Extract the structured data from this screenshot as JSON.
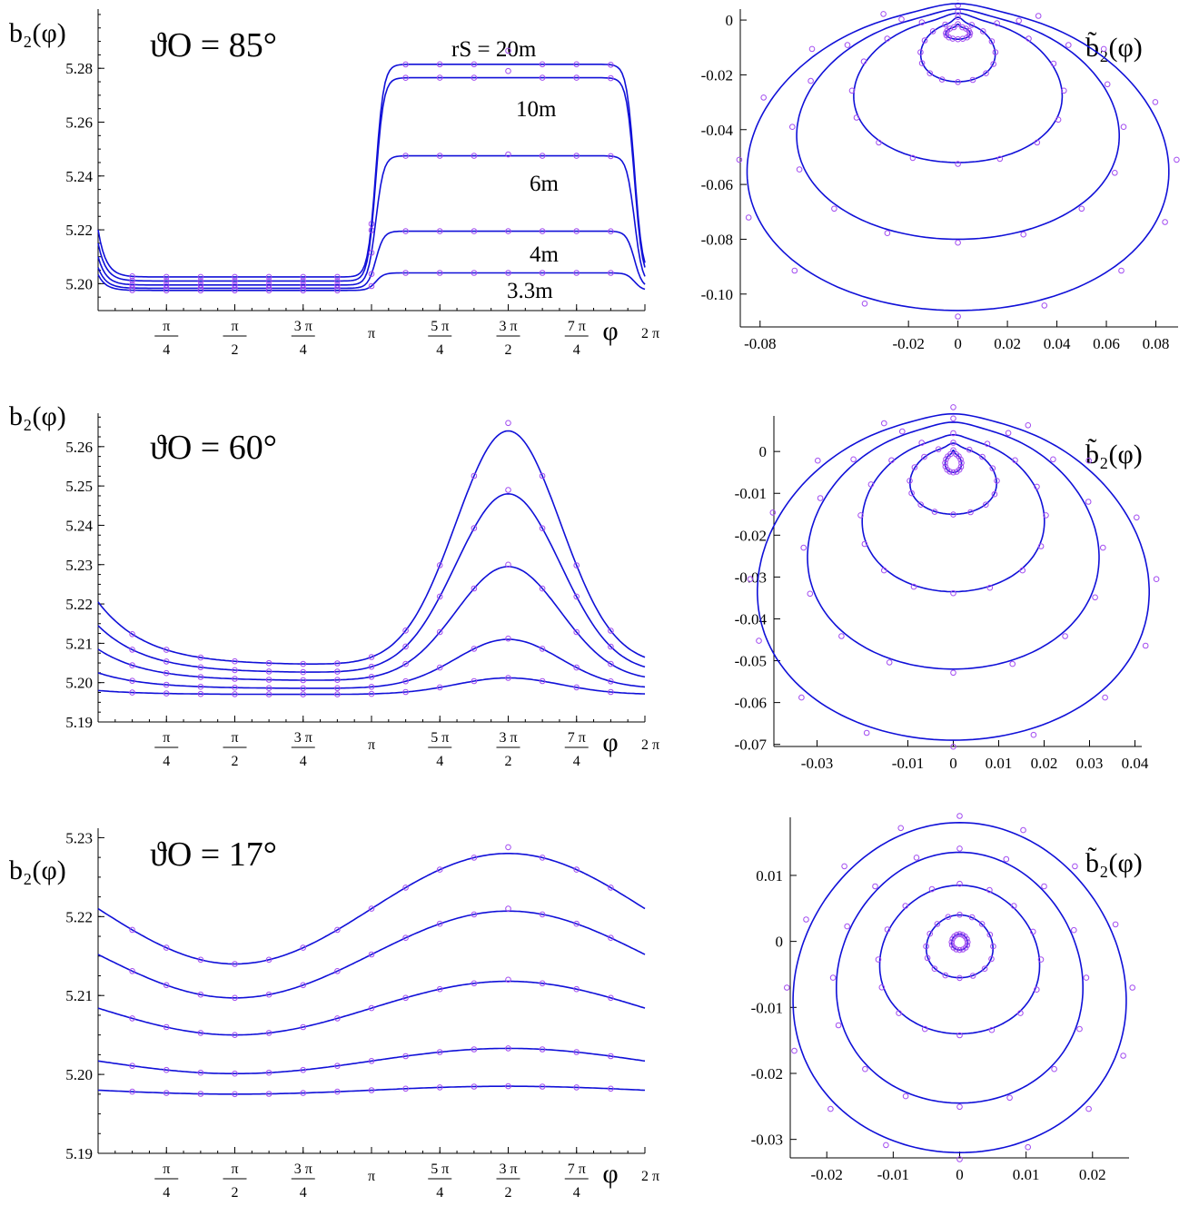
{
  "figure": {
    "ylabel_left": "b₂(φ)",
    "ylabel_right": "b̃₂(φ)",
    "xlabel": "φ",
    "rs_labels": [
      "rS = 20m",
      "10m",
      "6m",
      "4m",
      "3.3m"
    ],
    "colors": {
      "curve": "#1010d8",
      "marker": "#a24cf0",
      "axis": "#000000"
    }
  },
  "chart_data": [
    {
      "id": "p85",
      "type": "line",
      "title": "ϑO = 85°",
      "xlabel": "φ",
      "ylabel": "b₂(φ)",
      "x_ticks": [
        "π/4",
        "π/2",
        "3π/4",
        "π",
        "5π/4",
        "3π/2",
        "7π/4",
        "2π"
      ],
      "y_ticks": [
        "5.20",
        "5.22",
        "5.24",
        "5.26",
        "5.28"
      ],
      "xlim": [
        0,
        6.2832
      ],
      "ylim": [
        5.19,
        5.302
      ],
      "series": [
        {
          "name": "20m",
          "base": 5.2025,
          "peak": 5.2815,
          "shape": "step",
          "marker_peak": 5.2865
        },
        {
          "name": "10m",
          "base": 5.201,
          "peak": 5.2765,
          "shape": "step",
          "marker_peak": 5.279
        },
        {
          "name": "6m",
          "base": 5.1995,
          "peak": 5.2475,
          "shape": "step",
          "marker_peak": 5.248
        },
        {
          "name": "4m",
          "base": 5.1983,
          "peak": 5.2195,
          "shape": "step",
          "marker_peak": 5.2195
        },
        {
          "name": "3.3m",
          "base": 5.1975,
          "peak": 5.204,
          "shape": "step",
          "marker_peak": 5.204
        }
      ]
    },
    {
      "id": "p85r",
      "type": "scatter",
      "ylabel": "b̃₂(φ)",
      "x_ticks": [
        "-0.08",
        "-0.02",
        "0",
        "0.02",
        "0.04",
        "0.06",
        "0.08"
      ],
      "y_ticks": [
        "0",
        "-0.02",
        "-0.04",
        "-0.06",
        "-0.08",
        "-0.10"
      ],
      "xlim": [
        -0.088,
        0.089
      ],
      "ylim": [
        -0.112,
        0.004
      ],
      "loops": [
        {
          "rx": 0.0049,
          "top": -0.0025,
          "bottom": -0.007,
          "bump": 0.001
        },
        {
          "rx": 0.015,
          "top": -0.001,
          "bottom": -0.0225,
          "bump": 0.002
        },
        {
          "rx": 0.042,
          "top": 0.0005,
          "bottom": -0.052,
          "bump": 0.002
        },
        {
          "rx": 0.065,
          "top": 0.002,
          "bottom": -0.08,
          "bump": 0.002
        },
        {
          "rx": 0.085,
          "top": 0.004,
          "bottom": -0.106,
          "bump": 0.002
        }
      ]
    },
    {
      "id": "p60",
      "type": "line",
      "title": "ϑO = 60°",
      "xlabel": "φ",
      "ylabel": "b₂(φ)",
      "x_ticks": [
        "π/4",
        "π/2",
        "3π/4",
        "π",
        "5π/4",
        "3π/2",
        "7π/4",
        "2π"
      ],
      "y_ticks": [
        "5.19",
        "5.20",
        "5.21",
        "5.22",
        "5.23",
        "5.24",
        "5.25",
        "5.26"
      ],
      "xlim": [
        0,
        6.2832
      ],
      "ylim": [
        5.19,
        5.2685
      ],
      "series": [
        {
          "name": "20m",
          "base": 5.2045,
          "peak": 5.264,
          "shape": "smooth",
          "marker_peak": 5.266
        },
        {
          "name": "10m",
          "base": 5.2025,
          "peak": 5.248,
          "shape": "smooth",
          "marker_peak": 5.249
        },
        {
          "name": "6m",
          "base": 5.2005,
          "peak": 5.2295,
          "shape": "smooth",
          "marker_peak": 5.23
        },
        {
          "name": "4m",
          "base": 5.1985,
          "peak": 5.211,
          "shape": "smooth",
          "marker_peak": 5.2112
        },
        {
          "name": "3.3m",
          "base": 5.197,
          "peak": 5.2012,
          "shape": "smooth",
          "marker_peak": 5.2012
        }
      ]
    },
    {
      "id": "p60r",
      "type": "scatter",
      "ylabel": "b̃₂(φ)",
      "x_ticks": [
        "-0.03",
        "-0.01",
        "0",
        "0.01",
        "0.02",
        "0.03",
        "0.04"
      ],
      "y_ticks": [
        "0",
        "-0.01",
        "-0.02",
        "-0.03",
        "-0.04",
        "-0.05",
        "-0.06",
        "-0.07"
      ],
      "xlim": [
        -0.0395,
        0.0415
      ],
      "ylim": [
        -0.0705,
        0.0085
      ],
      "loops": [
        {
          "rx": 0.0018,
          "top": -0.0005,
          "bottom": -0.005,
          "bump": 0.0008
        },
        {
          "rx": 0.0095,
          "top": 0.001,
          "bottom": -0.015,
          "bump": 0.001
        },
        {
          "rx": 0.02,
          "top": 0.003,
          "bottom": -0.0335,
          "bump": 0.001
        },
        {
          "rx": 0.032,
          "top": 0.006,
          "bottom": -0.052,
          "bump": 0.001
        },
        {
          "rx": 0.043,
          "top": 0.008,
          "bottom": -0.069,
          "bump": 0.001
        }
      ]
    },
    {
      "id": "p17",
      "type": "line",
      "title": "ϑO = 17°",
      "xlabel": "φ",
      "ylabel": "b₂(φ)",
      "x_ticks": [
        "π/4",
        "π/2",
        "3π/4",
        "π",
        "5π/4",
        "3π/2",
        "7π/4",
        "2π"
      ],
      "y_ticks": [
        "5.19",
        "5.20",
        "5.21",
        "5.22",
        "5.23"
      ],
      "xlim": [
        0,
        6.2832
      ],
      "ylim": [
        5.19,
        5.2312
      ],
      "series": [
        {
          "name": "20m",
          "base": 5.214,
          "peak": 5.228,
          "shape": "sine",
          "marker_peak": 5.2288
        },
        {
          "name": "10m",
          "base": 5.2097,
          "peak": 5.2207,
          "shape": "sine",
          "marker_peak": 5.221
        },
        {
          "name": "6m",
          "base": 5.205,
          "peak": 5.2118,
          "shape": "sine",
          "marker_peak": 5.212
        },
        {
          "name": "4m",
          "base": 5.2001,
          "peak": 5.2033,
          "shape": "sine",
          "marker_peak": 5.2033
        },
        {
          "name": "3.3m",
          "base": 5.1975,
          "peak": 5.1985,
          "shape": "sine",
          "marker_peak": 5.1985
        }
      ]
    },
    {
      "id": "p17r",
      "type": "scatter",
      "ylabel": "b̃₂(φ)",
      "x_ticks": [
        "-0.02",
        "-0.01",
        "0",
        "0.01",
        "0.02"
      ],
      "y_ticks": [
        "0.01",
        "0",
        "-0.01",
        "-0.02",
        "-0.03"
      ],
      "xlim": [
        -0.0255,
        0.0255
      ],
      "ylim": [
        -0.0328,
        0.0188
      ],
      "loops": [
        {
          "rx": 0.0012,
          "top": 0.0011,
          "bottom": -0.0013,
          "bump": 0
        },
        {
          "rx": 0.005,
          "top": 0.004,
          "bottom": -0.0055,
          "bump": 0
        },
        {
          "rx": 0.012,
          "top": 0.0085,
          "bottom": -0.014,
          "bump": 0
        },
        {
          "rx": 0.0185,
          "top": 0.0135,
          "bottom": -0.0245,
          "bump": 0
        },
        {
          "rx": 0.025,
          "top": 0.018,
          "bottom": -0.032,
          "bump": 0
        }
      ]
    }
  ]
}
